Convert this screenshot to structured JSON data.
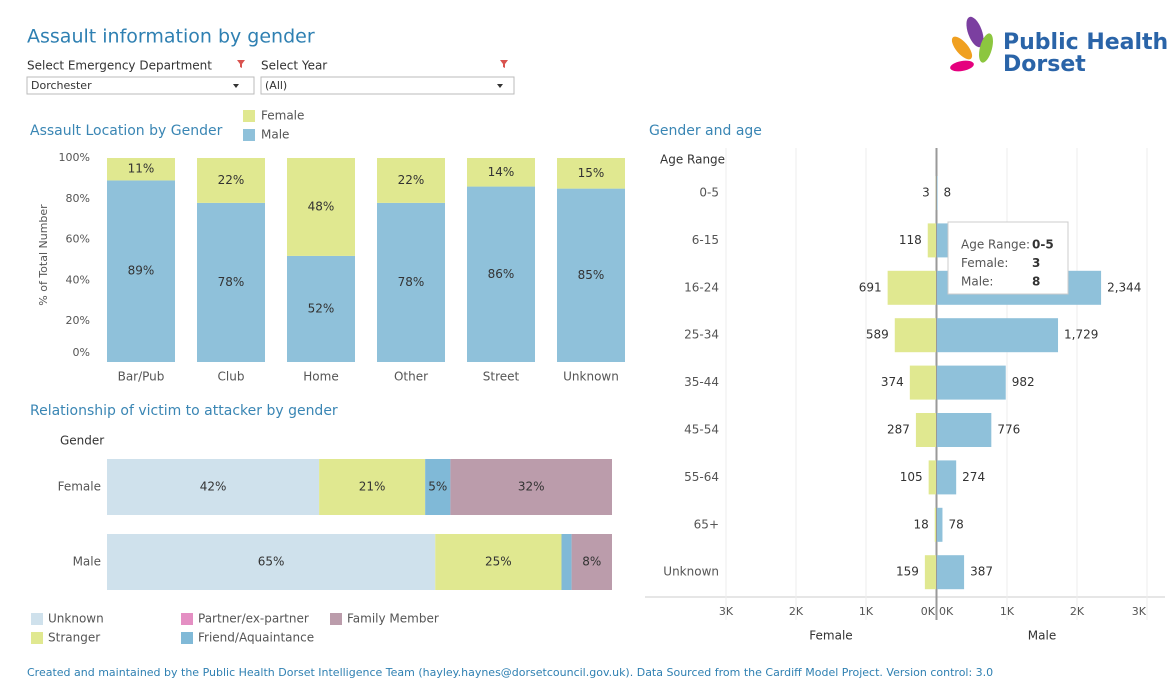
{
  "header": {
    "title": "Assault information by gender"
  },
  "filters": [
    {
      "label": "Select Emergency Department",
      "value": "Dorchester"
    },
    {
      "label": "Select Year",
      "value": "(All)"
    }
  ],
  "logo": {
    "line1": "Public Health",
    "line2": "Dorset"
  },
  "tooltip": {
    "labels": [
      "Age Range:",
      "Female:",
      "Male:"
    ]
  },
  "footer": "Created and maintained by the Public Health Dorset Intelligence Team (hayley.haynes@dorsetcouncil.gov.uk). Data Sourced from the Cardiff Model Project. Version control: 3.0",
  "chart_data": [
    {
      "type": "stacked_bar",
      "title": "Assault Location by Gender",
      "y_label": "% of Total Number",
      "categories": [
        "Bar/Pub",
        "Club",
        "Home",
        "Other",
        "Street",
        "Unknown"
      ],
      "series": [
        {
          "name": "Male",
          "color": "#8fc1da",
          "values": [
            89,
            78,
            52,
            78,
            86,
            85
          ],
          "value_labels": [
            "89%",
            "78%",
            "52%",
            "78%",
            "86%",
            "85%"
          ]
        },
        {
          "name": "Female",
          "color": "#e0e890",
          "values": [
            11,
            22,
            48,
            22,
            14,
            15
          ],
          "value_labels": [
            "11%",
            "22%",
            "48%",
            "22%",
            "14%",
            "15%"
          ]
        }
      ],
      "ylim": [
        0,
        100
      ],
      "yticks": [
        {
          "value": 0,
          "label": "0%"
        },
        {
          "value": 20,
          "label": "20%"
        },
        {
          "value": 40,
          "label": "40%"
        },
        {
          "value": 60,
          "label": "60%"
        },
        {
          "value": 80,
          "label": "80%"
        },
        {
          "value": 100,
          "label": "100%"
        }
      ],
      "grid": false
    },
    {
      "type": "stacked_bar_horizontal",
      "title": "Relationship of victim to attacker by gender",
      "y_label": "Gender",
      "categories": [
        "Female",
        "Male"
      ],
      "series": [
        {
          "name": "Unknown",
          "color": "#cfe1ec",
          "values": [
            42,
            65
          ],
          "value_labels": [
            "42%",
            "65%"
          ]
        },
        {
          "name": "Stranger",
          "color": "#e0e890",
          "values": [
            21,
            25
          ],
          "value_labels": [
            "21%",
            "25%"
          ]
        },
        {
          "name": "Partner/ex-partner",
          "color": "#e48fc3",
          "values": [
            0,
            0
          ],
          "value_labels": [
            null,
            null
          ]
        },
        {
          "name": "Friend/Aquaintance",
          "color": "#80b9d7",
          "values": [
            5,
            2
          ],
          "value_labels": [
            "5%",
            null
          ]
        },
        {
          "name": "Family Member",
          "color": "#bb9cab",
          "values": [
            32,
            8
          ],
          "value_labels": [
            "32%",
            "8%"
          ]
        }
      ],
      "xlim": [
        0,
        100
      ]
    },
    {
      "type": "pyramid",
      "title": "Gender and age",
      "y_label": "Age Range",
      "categories": [
        "0-5",
        "6-15",
        "16-24",
        "25-34",
        "35-44",
        "45-54",
        "55-64",
        "65+",
        "Unknown"
      ],
      "series": [
        {
          "name": "Female",
          "color": "#e0e890",
          "values": [
            3,
            118,
            691,
            589,
            374,
            287,
            105,
            18,
            159
          ],
          "xlim": [
            3000,
            0
          ],
          "xticks": [
            {
              "value": 3000,
              "label": "3K"
            },
            {
              "value": 2000,
              "label": "2K"
            },
            {
              "value": 1000,
              "label": "1K"
            },
            {
              "value": 0,
              "label": "0K"
            }
          ]
        },
        {
          "name": "Male",
          "color": "#8fc1da",
          "values": [
            8,
            170,
            2344,
            1729,
            982,
            776,
            274,
            78,
            387
          ],
          "value_labels": [
            "8",
            null,
            "2,344",
            "1,729",
            "982",
            "776",
            "274",
            "78",
            "387"
          ],
          "xlim": [
            0,
            3000
          ],
          "xticks": [
            {
              "value": 0,
              "label": "0K"
            },
            {
              "value": 1000,
              "label": "1K"
            },
            {
              "value": 2000,
              "label": "2K"
            },
            {
              "value": 3000,
              "label": "3K"
            }
          ]
        }
      ],
      "grid": true
    }
  ]
}
